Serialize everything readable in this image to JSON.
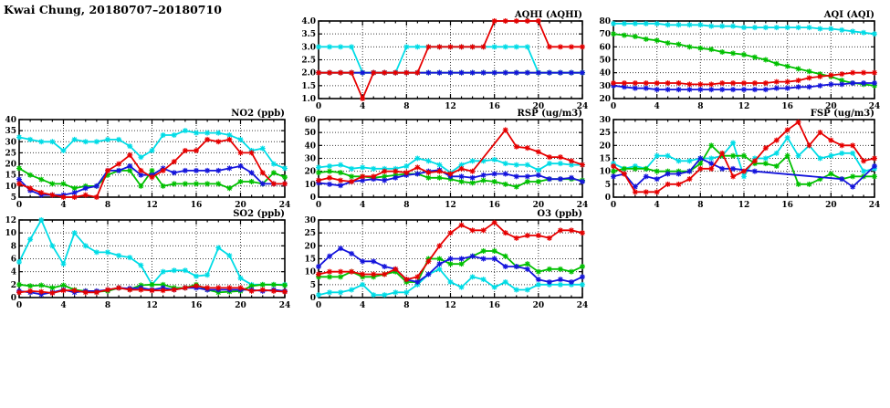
{
  "page": {
    "title": "Kwai Chung, 20180707–20180710"
  },
  "colors": {
    "red": "#e60000",
    "green": "#00c000",
    "blue": "#1414dc",
    "cyan": "#00dce6"
  },
  "x_axis": {
    "ticks": [
      0,
      4,
      8,
      12,
      16,
      20,
      24
    ],
    "range": [
      0,
      24
    ]
  },
  "chart_data": [
    {
      "key": "aqhi",
      "type": "line",
      "title": "AQHI (AQHI)",
      "xlim": [
        0,
        24
      ],
      "xtick_step": 4,
      "xminor_step": 1,
      "ylim": [
        1,
        4
      ],
      "ytick_step": 0.5,
      "ydecimals": 1,
      "grid": true,
      "legend": "none",
      "series": [
        {
          "name": "cyan",
          "color": "#00dce6",
          "values": [
            3,
            3,
            3,
            3,
            2,
            2,
            2,
            2,
            3,
            3,
            3,
            3,
            3,
            3,
            3,
            3,
            3,
            3,
            3,
            3,
            2,
            2,
            2,
            2,
            2
          ]
        },
        {
          "name": "green",
          "color": "#00c000",
          "values": [
            2,
            2,
            2,
            2,
            2,
            2,
            2,
            2,
            2,
            2,
            2,
            2,
            2,
            2,
            2,
            2,
            2,
            2,
            2,
            2,
            2,
            2,
            2,
            2,
            2
          ]
        },
        {
          "name": "blue",
          "color": "#1414dc",
          "values": [
            2,
            2,
            2,
            2,
            2,
            2,
            2,
            2,
            2,
            2,
            2,
            2,
            2,
            2,
            2,
            2,
            2,
            2,
            2,
            2,
            2,
            2,
            2,
            2,
            2
          ]
        },
        {
          "name": "red",
          "color": "#e60000",
          "values": [
            2,
            2,
            2,
            2,
            1,
            2,
            2,
            2,
            2,
            2,
            3,
            3,
            3,
            3,
            3,
            3,
            4,
            4,
            4,
            4,
            4,
            3,
            3,
            3,
            3
          ]
        }
      ]
    },
    {
      "key": "aqi",
      "type": "line",
      "title": "AQI (AQI)",
      "xlim": [
        0,
        24
      ],
      "xtick_step": 4,
      "xminor_step": 1,
      "ylim": [
        20,
        80
      ],
      "ytick_step": 10,
      "ydecimals": 0,
      "grid": true,
      "legend": "none",
      "series": [
        {
          "name": "cyan",
          "color": "#00dce6",
          "values": [
            78,
            78,
            78,
            78,
            78,
            77,
            77,
            77,
            77,
            76,
            76,
            76,
            75,
            75,
            75,
            75,
            75,
            75,
            75,
            74,
            74,
            73,
            72,
            71,
            70
          ]
        },
        {
          "name": "green",
          "color": "#00c000",
          "values": [
            70,
            69,
            68,
            66,
            65,
            63,
            62,
            60,
            59,
            58,
            56,
            55,
            54,
            52,
            50,
            47,
            45,
            43,
            41,
            39,
            37,
            34,
            32,
            31,
            30
          ]
        },
        {
          "name": "blue",
          "color": "#1414dc",
          "values": [
            30,
            29,
            28,
            28,
            27,
            27,
            27,
            27,
            27,
            27,
            27,
            27,
            27,
            27,
            27,
            28,
            28,
            29,
            29,
            30,
            31,
            31,
            32,
            32,
            32
          ]
        },
        {
          "name": "red",
          "color": "#e60000",
          "values": [
            32,
            32,
            32,
            32,
            32,
            32,
            32,
            31,
            31,
            31,
            32,
            32,
            32,
            32,
            32,
            33,
            33,
            34,
            36,
            37,
            38,
            39,
            40,
            40,
            40
          ]
        }
      ]
    },
    {
      "key": "no2",
      "type": "line",
      "title": "NO2 (ppb)",
      "xlim": [
        0,
        24
      ],
      "xtick_step": 4,
      "xminor_step": 1,
      "ylim": [
        5,
        40
      ],
      "ytick_step": 5,
      "ydecimals": 0,
      "grid": true,
      "legend": "none",
      "series": [
        {
          "name": "cyan",
          "color": "#00dce6",
          "values": [
            32,
            31,
            30,
            30,
            26,
            31,
            30,
            30,
            31,
            31,
            28,
            23,
            26,
            33,
            33,
            35,
            34,
            34,
            34,
            33,
            31,
            26,
            27,
            20,
            18
          ]
        },
        {
          "name": "green",
          "color": "#00c000",
          "values": [
            18,
            15,
            13,
            11,
            11,
            9,
            10,
            10,
            15,
            17,
            17,
            10,
            17,
            10,
            11,
            11,
            11,
            11,
            11,
            9,
            12,
            12,
            11,
            16,
            14
          ]
        },
        {
          "name": "blue",
          "color": "#1414dc",
          "values": [
            13,
            8,
            6,
            6,
            6,
            7,
            9,
            10,
            17,
            17,
            19,
            15,
            15,
            18,
            16,
            17,
            17,
            17,
            17,
            18,
            19,
            16,
            11,
            11,
            11
          ]
        },
        {
          "name": "red",
          "color": "#e60000",
          "values": [
            11,
            9,
            7,
            6,
            5,
            5,
            6,
            5,
            17,
            20,
            24,
            17,
            14,
            17,
            21,
            26,
            26,
            31,
            30,
            31,
            25,
            25,
            16,
            11,
            11
          ]
        }
      ]
    },
    {
      "key": "rsp",
      "type": "line",
      "title": "RSP (ug/m3)",
      "xlim": [
        0,
        24
      ],
      "xtick_step": 4,
      "xminor_step": 1,
      "ylim": [
        0,
        60
      ],
      "ytick_step": 10,
      "ydecimals": 0,
      "grid": true,
      "legend": "none",
      "series": [
        {
          "name": "cyan",
          "color": "#00dce6",
          "values": [
            23,
            24,
            25,
            22,
            23,
            22,
            22,
            22,
            24,
            30,
            28,
            25,
            19,
            25,
            28,
            28,
            29,
            26,
            25,
            25,
            21,
            26,
            26,
            25,
            25
          ]
        },
        {
          "name": "green",
          "color": "#00c000",
          "values": [
            19,
            20,
            19,
            16,
            16,
            15,
            16,
            17,
            18,
            18,
            15,
            15,
            14,
            12,
            11,
            13,
            12,
            10,
            8,
            12,
            12,
            14,
            14,
            14,
            13
          ]
        },
        {
          "name": "blue",
          "color": "#1414dc",
          "values": [
            11,
            10,
            9,
            12,
            13,
            14,
            13,
            15,
            17,
            18,
            20,
            21,
            16,
            16,
            15,
            17,
            18,
            18,
            16,
            16,
            17,
            14,
            14,
            15,
            12
          ]
        },
        {
          "name": "red",
          "color": "#e60000",
          "points": [
            [
              0,
              13
            ],
            [
              1,
              15
            ],
            [
              2,
              13
            ],
            [
              3,
              12
            ],
            [
              4,
              16
            ],
            [
              5,
              16
            ],
            [
              6,
              20
            ],
            [
              7,
              20
            ],
            [
              8,
              19
            ],
            [
              9,
              23
            ],
            [
              10,
              19
            ],
            [
              11,
              20
            ],
            [
              12,
              18
            ],
            [
              13,
              22
            ],
            [
              14,
              20
            ],
            [
              17,
              52
            ],
            [
              18,
              39
            ],
            [
              19,
              38
            ],
            [
              20,
              35
            ],
            [
              21,
              31
            ],
            [
              22,
              31
            ],
            [
              23,
              28
            ],
            [
              24,
              25
            ]
          ]
        }
      ]
    },
    {
      "key": "fsp",
      "type": "line",
      "title": "FSP (ug/m3)",
      "xlim": [
        0,
        24
      ],
      "xtick_step": 4,
      "xminor_step": 1,
      "ylim": [
        0,
        30
      ],
      "ytick_step": 5,
      "ydecimals": 0,
      "grid": true,
      "legend": "none",
      "series": [
        {
          "name": "cyan",
          "color": "#00dce6",
          "values": [
            13,
            11,
            12,
            11,
            16,
            16,
            14,
            14,
            15,
            15,
            16,
            21,
            8,
            15,
            15,
            17,
            23,
            16,
            20,
            15,
            16,
            17,
            17,
            10,
            11
          ]
        },
        {
          "name": "green",
          "color": "#00c000",
          "values": [
            10,
            11,
            11,
            11,
            10,
            10,
            10,
            10,
            13,
            20,
            16,
            16,
            16,
            13,
            13,
            12,
            16,
            5,
            5,
            7,
            9,
            7,
            8,
            8,
            8
          ]
        },
        {
          "name": "blue",
          "color": "#1414dc",
          "points": [
            [
              0,
              8
            ],
            [
              1,
              9
            ],
            [
              2,
              4
            ],
            [
              3,
              8
            ],
            [
              4,
              7
            ],
            [
              5,
              9
            ],
            [
              6,
              9
            ],
            [
              7,
              10
            ],
            [
              8,
              15
            ],
            [
              9,
              13
            ],
            [
              10,
              11
            ],
            [
              11,
              11
            ],
            [
              13,
              10
            ],
            [
              21,
              7
            ],
            [
              22,
              4
            ],
            [
              24,
              12
            ]
          ]
        },
        {
          "name": "red",
          "color": "#e60000",
          "values": [
            12,
            9,
            2,
            2,
            2,
            5,
            5,
            7,
            11,
            11,
            17,
            8,
            10,
            14,
            19,
            22,
            26,
            29,
            20,
            25,
            22,
            20,
            20,
            14,
            15
          ]
        }
      ]
    },
    {
      "key": "so2",
      "type": "line",
      "title": "SO2 (ppb)",
      "xlim": [
        0,
        24
      ],
      "xtick_step": 4,
      "xminor_step": 1,
      "ylim": [
        0,
        12
      ],
      "ytick_step": 2,
      "ydecimals": 0,
      "grid": true,
      "legend": "none",
      "series": [
        {
          "name": "cyan",
          "color": "#00dce6",
          "values": [
            5.5,
            9,
            12,
            8,
            5.2,
            10,
            8,
            7,
            7,
            6.5,
            6.2,
            5,
            2,
            4,
            4.2,
            4.2,
            3.3,
            3.5,
            7.7,
            6.5,
            3,
            2,
            2,
            2,
            2
          ]
        },
        {
          "name": "green",
          "color": "#00c000",
          "values": [
            2,
            1.8,
            1.9,
            1.5,
            1.9,
            1.2,
            1,
            0.9,
            1,
            1.5,
            1.3,
            1.9,
            2,
            2,
            1.5,
            1.5,
            2,
            1.2,
            0.8,
            0.9,
            1,
            1.8,
            2,
            2,
            1.9
          ]
        },
        {
          "name": "blue",
          "color": "#1414dc",
          "values": [
            1,
            0.8,
            0.5,
            0.8,
            1.2,
            0.8,
            1,
            1,
            1.2,
            1.5,
            1.4,
            1.5,
            1.2,
            1.5,
            1.2,
            1.5,
            1.5,
            1.2,
            1.2,
            1.2,
            1.2,
            1.2,
            1,
            1.2,
            1
          ]
        },
        {
          "name": "red",
          "color": "#e60000",
          "values": [
            0.8,
            1,
            0.9,
            0.7,
            1.1,
            1.1,
            0.8,
            0.8,
            1.2,
            1.5,
            1.2,
            1.2,
            1.1,
            1.1,
            1.2,
            1.5,
            1.8,
            1.5,
            1.5,
            1.5,
            1.5,
            1,
            1.2,
            1,
            0.9
          ]
        }
      ]
    },
    {
      "key": "o3",
      "type": "line",
      "title": "O3 (ppb)",
      "xlim": [
        0,
        24
      ],
      "xtick_step": 4,
      "xminor_step": 1,
      "ylim": [
        0,
        30
      ],
      "ytick_step": 5,
      "ydecimals": 0,
      "grid": true,
      "legend": "none",
      "series": [
        {
          "name": "cyan",
          "color": "#00dce6",
          "values": [
            1,
            2,
            2,
            3,
            5,
            1,
            1,
            2,
            2,
            5,
            9,
            11,
            6,
            4,
            8,
            7,
            4,
            6,
            3,
            3,
            5,
            5,
            5,
            5,
            5
          ]
        },
        {
          "name": "green",
          "color": "#00c000",
          "values": [
            8,
            8,
            8,
            10,
            8,
            8,
            9,
            10,
            6,
            6,
            15,
            15,
            13,
            13,
            16,
            18,
            18,
            16,
            12,
            13,
            10,
            11,
            11,
            10,
            12
          ]
        },
        {
          "name": "blue",
          "color": "#1414dc",
          "values": [
            12,
            16,
            19,
            17,
            14,
            14,
            12,
            11,
            7,
            6,
            9,
            13,
            15,
            15,
            16,
            15,
            15,
            12,
            12,
            11,
            7,
            6,
            7,
            6,
            8
          ]
        },
        {
          "name": "red",
          "color": "#e60000",
          "values": [
            9,
            10,
            10,
            10,
            9,
            9,
            9,
            11,
            7,
            8,
            14,
            20,
            25,
            28,
            26,
            26,
            29,
            25,
            23,
            24,
            24,
            23,
            26,
            26,
            25
          ]
        }
      ]
    }
  ]
}
